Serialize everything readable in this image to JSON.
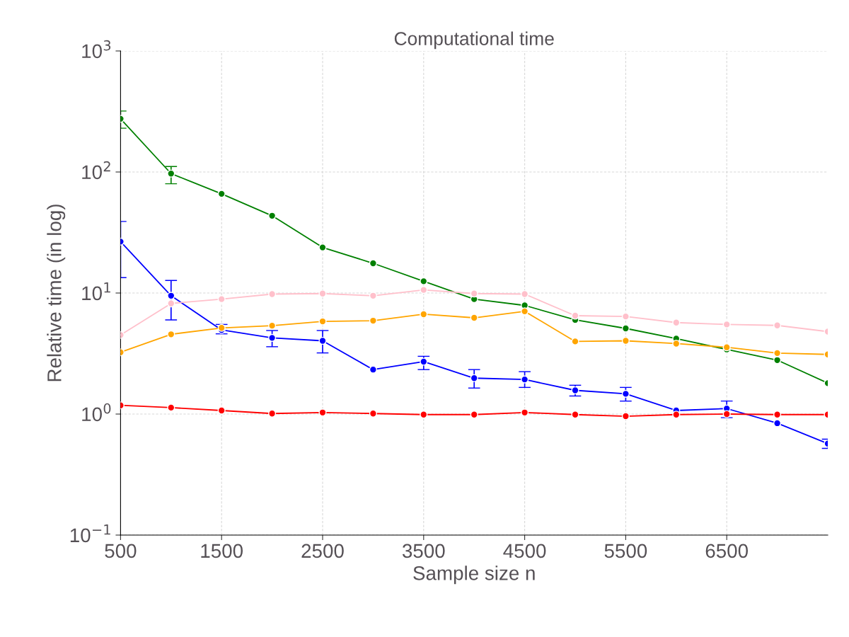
{
  "chart_data": {
    "type": "line",
    "title": "Computational time",
    "xlabel": "Sample size n",
    "ylabel": "Relative time (in log)",
    "x": [
      500,
      1000,
      1500,
      2000,
      2500,
      3000,
      3500,
      4000,
      4500,
      5000,
      5500,
      6000,
      6500,
      7000,
      7500
    ],
    "xlim": [
      500,
      7500
    ],
    "xticks": [
      500,
      1500,
      2500,
      3500,
      4500,
      5500,
      6500
    ],
    "ylim": [
      0.1,
      1000
    ],
    "yticks": [
      {
        "value": 0.1,
        "label": "10$^{−1}$"
      },
      {
        "value": 1,
        "label": "10$^{0}$"
      },
      {
        "value": 10,
        "label": "10$^{1}$"
      },
      {
        "value": 100,
        "label": "10$^{2}$"
      },
      {
        "value": 1000,
        "label": "10$^{3}$"
      }
    ],
    "log": "y",
    "grid": true,
    "marker": "circle",
    "line_style": "solid",
    "series": [
      {
        "color": "#008000",
        "values": [
          275,
          97,
          66,
          43.5,
          23.8,
          17.6,
          12.5,
          8.9,
          7.9,
          6.0,
          5.1,
          4.2,
          3.42,
          2.79,
          1.8
        ],
        "errors": [
          [
            230,
            319
          ],
          [
            80,
            111
          ],
          null,
          null,
          null,
          null,
          null,
          null,
          null,
          null,
          null,
          null,
          null,
          null,
          null
        ]
      },
      {
        "color": "#0000ff",
        "values": [
          26.6,
          9.5,
          4.95,
          4.26,
          4.03,
          2.33,
          2.71,
          1.98,
          1.93,
          1.57,
          1.47,
          1.07,
          1.11,
          0.84,
          0.57
        ],
        "errors": [
          [
            13.4,
            39
          ],
          [
            6.0,
            12.7
          ],
          [
            4.6,
            5.5
          ],
          [
            3.6,
            4.9
          ],
          [
            3.2,
            4.9
          ],
          null,
          [
            2.33,
            3.0
          ],
          [
            1.64,
            2.33
          ],
          [
            1.66,
            2.24
          ],
          [
            1.41,
            1.73
          ],
          [
            1.28,
            1.66
          ],
          null,
          [
            0.934,
            1.28
          ],
          null,
          [
            0.52,
            0.62
          ]
        ]
      },
      {
        "color": "#ff0000",
        "values": [
          1.18,
          1.13,
          1.07,
          1.01,
          1.03,
          1.01,
          0.99,
          0.99,
          1.03,
          0.99,
          0.96,
          0.99,
          1.0,
          0.99,
          0.99
        ]
      },
      {
        "color": "#ffa500",
        "values": [
          3.24,
          4.56,
          5.15,
          5.37,
          5.83,
          5.91,
          6.68,
          6.24,
          7.06,
          3.98,
          4.03,
          3.82,
          3.56,
          3.19,
          3.11
        ]
      },
      {
        "color": "#ffc0cb",
        "values": [
          4.5,
          8.2,
          8.9,
          9.8,
          9.9,
          9.5,
          10.6,
          9.9,
          9.8,
          6.5,
          6.4,
          5.7,
          5.5,
          5.4,
          4.8
        ]
      }
    ]
  }
}
